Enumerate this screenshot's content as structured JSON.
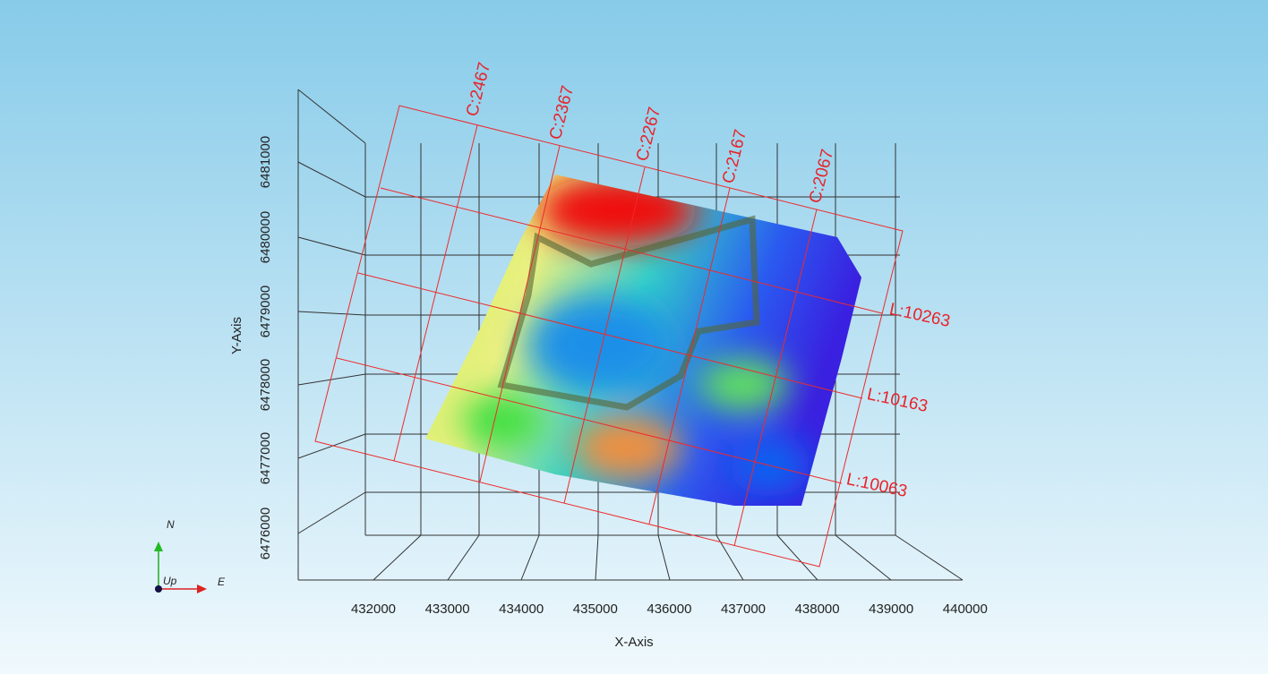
{
  "axes": {
    "x": {
      "title": "X-Axis",
      "ticks": [
        "432000",
        "433000",
        "434000",
        "435000",
        "436000",
        "437000",
        "438000",
        "439000",
        "440000"
      ]
    },
    "y": {
      "title": "Y-Axis",
      "ticks": [
        "6481000",
        "6480000",
        "6479000",
        "6478000",
        "6477000",
        "6476000"
      ]
    }
  },
  "sections": {
    "crosslines": [
      "C:2467",
      "C:2367",
      "C:2267",
      "C:2167",
      "C:2067"
    ],
    "lines": [
      "L:10263",
      "L:10163",
      "L:10063"
    ]
  },
  "compass": {
    "north": "N",
    "east": "E",
    "up": "Up"
  }
}
